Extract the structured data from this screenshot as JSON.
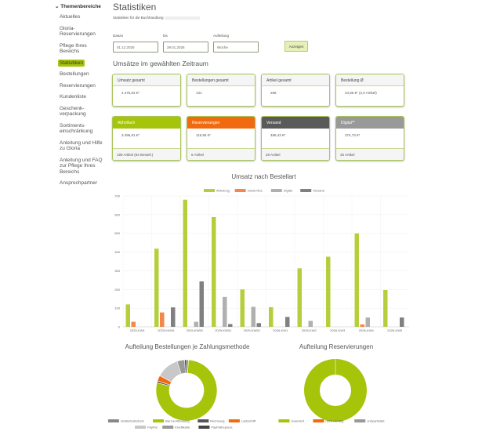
{
  "sidebar": {
    "heading": "Themenbereiche",
    "items": [
      {
        "label": "Aktuelles"
      },
      {
        "label": "Gloria-Reservierungen"
      },
      {
        "label": "Pflege Ihres Bereichs"
      },
      {
        "label": "Statistiken",
        "active": true
      },
      {
        "label": "Bestellungen"
      },
      {
        "label": "Reservierungen"
      },
      {
        "label": "Kundenliste"
      },
      {
        "label": "Geschenk-verpackung"
      },
      {
        "label": "Sortiments-einschränkung"
      },
      {
        "label": "Anleitung und Hilfe zu Gloria"
      },
      {
        "label": "Anleitung und FAQ zur Pflege Ihres Bereichs"
      },
      {
        "label": "Ansprechpartner"
      }
    ]
  },
  "page": {
    "title": "Statistiken",
    "subtitle": "Statistiken für die Buchhandlung"
  },
  "form": {
    "date_label": "Datum",
    "date_value": "01.12.2025",
    "to_label": "bis",
    "to_value": "29.01.2026",
    "split_label": "Aufteilung",
    "split_value": "Woche",
    "submit": "Anzeigen"
  },
  "section_title": "Umsätze im gewählten Zeitraum",
  "summary": [
    {
      "title": "Umsatz gesamt",
      "value": "4.475,02 €*"
    },
    {
      "title": "Bestellungen gesamt",
      "value": "131"
    },
    {
      "title": "Artikel gesamt",
      "value": "258"
    },
    {
      "title": "Bestellung Ø",
      "value": "34,86 €* (2,0 Artikel)"
    }
  ],
  "types": [
    {
      "title": "Abholfach",
      "value": "3.496,91 €*",
      "footer": "189 Artikel (94 Bestell.)",
      "color": "#a6c40a"
    },
    {
      "title": "Reservierungen",
      "value": "116,95 €*",
      "footer": "6 Artikel",
      "color": "#f26a10"
    },
    {
      "title": "Versand",
      "value": "486,43 €*",
      "footer": "28 Artikel",
      "color": "#5a5a5a"
    },
    {
      "title": "Digital**",
      "value": "374,73 €*",
      "footer": "35 Artikel",
      "color": "#999999"
    }
  ],
  "chart_data": [
    {
      "type": "bar",
      "title": "Umsatz nach Bestellart",
      "legend": "top",
      "grid": true,
      "ylim": [
        0,
        700
      ],
      "yticks": [
        0,
        100,
        200,
        300,
        400,
        500,
        600,
        700
      ],
      "categories": [
        "2025-KW1",
        "2025-KW49",
        "2025-KW50",
        "2025-KW51",
        "2025-KW52",
        "2026-KW1",
        "2026-KW2",
        "2026-KW3",
        "2026-KW4",
        "2026-KW5"
      ],
      "series": [
        {
          "name": "Abholung",
          "color": "#b5cf3c",
          "values": [
            120,
            418,
            680,
            587,
            200,
            105,
            313,
            375,
            500,
            197
          ]
        },
        {
          "name": "Gloria Res.",
          "color": "#f5874a",
          "values": [
            27,
            77,
            0,
            0,
            0,
            0,
            0,
            0,
            13,
            0
          ]
        },
        {
          "name": "Digital",
          "color": "#b0b0b0",
          "values": [
            0,
            0,
            27,
            160,
            107,
            0,
            32,
            0,
            50,
            0
          ]
        },
        {
          "name": "Versand",
          "color": "#808080",
          "values": [
            0,
            104,
            243,
            15,
            20,
            53,
            0,
            0,
            0,
            50
          ]
        }
      ]
    },
    {
      "type": "pie",
      "title": "Aufteilung Bestellungen je Zahlungsmethode",
      "legend": "bottom",
      "labels": [
        "Gratis/Gutschein",
        "Bar bei Abholung",
        "Rechnung",
        "Lastschrift",
        "PayPal",
        "Kreditkarte",
        "PayPalExpress"
      ],
      "colors": [
        "#888888",
        "#a6c40a",
        "#555555",
        "#f26a10",
        "#c8c8c8",
        "#999999",
        "#444444"
      ],
      "values": [
        1,
        78,
        1,
        3,
        12,
        4,
        1
      ]
    },
    {
      "type": "pie",
      "title": "Aufteilung Reservierungen",
      "legend": "bottom",
      "labels": [
        "reserviert",
        "nicht vorrätig",
        "unbearbeitet"
      ],
      "colors": [
        "#a6c40a",
        "#f26a10",
        "#999999"
      ],
      "values": [
        100,
        0,
        0
      ]
    }
  ]
}
